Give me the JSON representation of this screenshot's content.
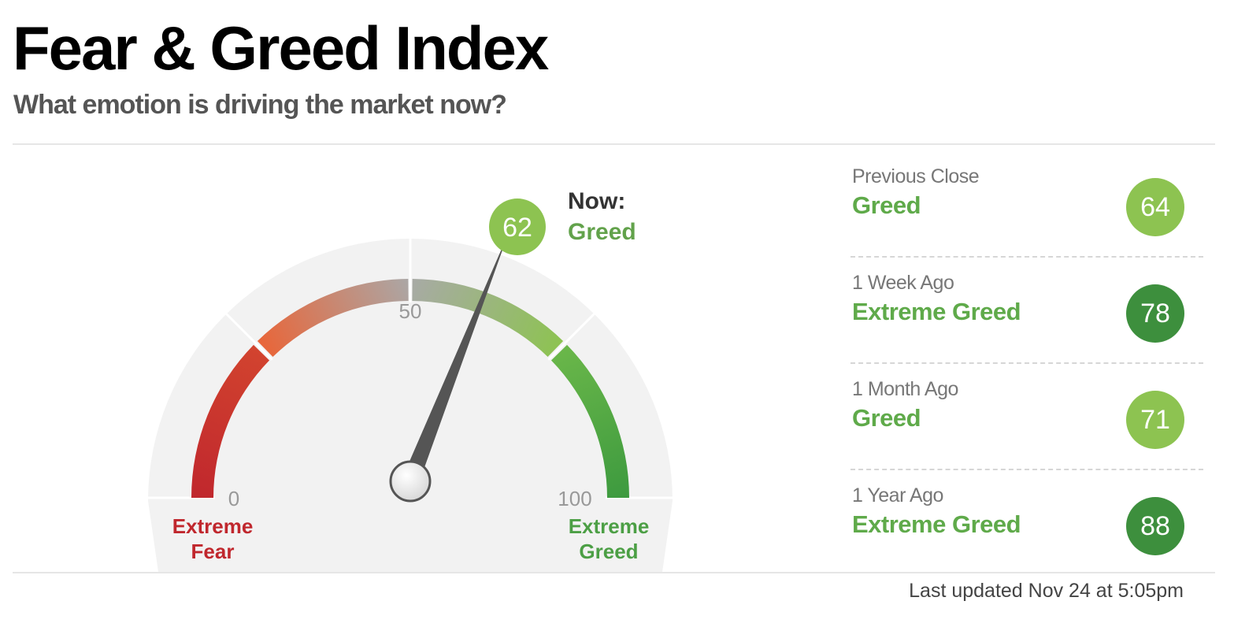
{
  "header": {
    "title": "Fear & Greed Index",
    "subtitle": "What emotion is driving the market now?"
  },
  "gauge": {
    "value": 62,
    "min": 0,
    "max": 100,
    "now_label": "Now:",
    "now_rating": "Greed",
    "scale_labels": {
      "min": "0",
      "mid": "50",
      "max": "100"
    },
    "left_caption": [
      "Extreme",
      "Fear"
    ],
    "right_caption": [
      "Extreme",
      "Greed"
    ],
    "colors": {
      "extreme_fear": "#c0272d",
      "fear": "#e8663a",
      "neutral": "#a9a9a9",
      "greed": "#8dc351",
      "extreme_greed": "#3d9a3f",
      "value_bubble": "#8dc351"
    }
  },
  "history": [
    {
      "label": "Previous Close",
      "rating": "Greed",
      "value": "64",
      "color": "#8dc351"
    },
    {
      "label": "1 Week Ago",
      "rating": "Extreme Greed",
      "value": "78",
      "color": "#3d8f3d"
    },
    {
      "label": "1 Month Ago",
      "rating": "Greed",
      "value": "71",
      "color": "#8dc351"
    },
    {
      "label": "1 Year Ago",
      "rating": "Extreme Greed",
      "value": "88",
      "color": "#3d8f3d"
    }
  ],
  "footer": {
    "last_updated": "Last updated Nov 24 at 5:05pm"
  }
}
